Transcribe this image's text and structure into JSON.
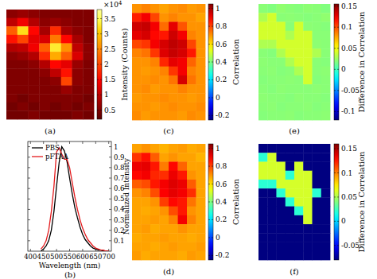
{
  "chart_data": [
    {
      "type": "heatmap",
      "panel_label": "(a)",
      "color": "hot",
      "cells": [
        [
          0.6,
          0.7,
          0.6,
          0.5,
          0.5,
          0.5,
          0.5,
          0.5
        ],
        [
          1.0,
          1.4,
          0.9,
          0.6,
          0.7,
          0.6,
          0.5,
          0.5
        ],
        [
          2.2,
          3.2,
          1.5,
          0.8,
          1.8,
          0.8,
          0.6,
          0.5
        ],
        [
          1.6,
          2.0,
          1.3,
          1.2,
          2.4,
          1.5,
          0.8,
          0.5
        ],
        [
          0.9,
          1.0,
          1.4,
          2.2,
          3.3,
          2.6,
          1.0,
          0.6
        ],
        [
          0.6,
          0.7,
          0.9,
          1.8,
          2.8,
          2.2,
          1.2,
          0.6
        ],
        [
          0.5,
          0.5,
          0.6,
          0.9,
          1.5,
          1.3,
          0.7,
          0.5
        ],
        [
          0.5,
          0.5,
          0.5,
          0.6,
          1.0,
          1.6,
          0.6,
          0.5
        ],
        [
          0.5,
          0.5,
          0.5,
          0.5,
          0.6,
          2.0,
          0.6,
          0.5
        ],
        [
          0.5,
          0.5,
          0.5,
          0.5,
          0.5,
          0.7,
          0.5,
          0.5
        ],
        [
          0.5,
          0.4,
          0.5,
          0.5,
          0.5,
          0.5,
          0.5,
          0.4
        ],
        [
          0.4,
          0.5,
          0.4,
          0.5,
          0.4,
          0.5,
          0.4,
          0.5
        ],
        [
          0.4,
          0.4,
          0.5,
          0.4,
          0.4,
          0.4,
          0.5,
          0.4
        ]
      ],
      "colorbar": {
        "range": [
          0.2,
          3.8
        ],
        "ticks": [
          0.5,
          1,
          1.5,
          2,
          2.5,
          3,
          3.5
        ],
        "label": "Intensity (Counts)",
        "multiplier": "×10",
        "exponent": "4"
      }
    },
    {
      "type": "line",
      "panel_label": "(b)",
      "x": [
        440,
        450,
        460,
        470,
        480,
        490,
        500,
        510,
        520,
        530,
        540,
        550,
        560,
        570,
        580,
        590,
        600,
        610,
        620,
        630,
        640,
        650,
        660,
        670,
        680,
        690,
        700
      ],
      "series": [
        {
          "name": "PBS",
          "color": "#000000",
          "values": [
            0,
            0.02,
            0.05,
            0.1,
            0.2,
            0.38,
            0.62,
            0.85,
            1.0,
            0.96,
            0.86,
            0.7,
            0.55,
            0.42,
            0.32,
            0.23,
            0.16,
            0.11,
            0.08,
            0.05,
            0.03,
            0.02,
            0.01,
            0.01,
            0,
            0,
            0
          ]
        },
        {
          "name": "pFTAA",
          "color": "#e41a1c",
          "values": [
            0.02,
            0.05,
            0.1,
            0.2,
            0.38,
            0.62,
            0.95,
            0.99,
            0.93,
            0.88,
            0.88,
            0.8,
            0.66,
            0.52,
            0.4,
            0.3,
            0.22,
            0.16,
            0.11,
            0.08,
            0.05,
            0.03,
            0.02,
            0.01,
            0.01,
            0,
            0
          ]
        }
      ],
      "xlim": [
        390,
        710
      ],
      "ylim": [
        0,
        1.05
      ],
      "xticks": [
        400,
        450,
        500,
        550,
        600,
        650,
        700
      ],
      "yticks": [
        0.1,
        0.2,
        0.3,
        0.4,
        0.5,
        0.6,
        0.7,
        0.8,
        0.9,
        1
      ],
      "xlabel": "Wavelength (nm)",
      "ylabel": "Normalized Intensity",
      "legend": "upper left"
    },
    {
      "type": "heatmap",
      "panel_label": "(c)",
      "color": "jet",
      "cells": [
        [
          0.7,
          0.72,
          0.7,
          0.68,
          0.7,
          0.71,
          0.69,
          0.7
        ],
        [
          0.85,
          0.9,
          0.8,
          0.7,
          0.72,
          0.7,
          0.7,
          0.68
        ],
        [
          0.95,
          0.96,
          0.9,
          0.75,
          0.92,
          0.78,
          0.7,
          0.7
        ],
        [
          0.92,
          0.94,
          0.88,
          0.86,
          0.95,
          0.9,
          0.72,
          0.7
        ],
        [
          0.8,
          0.82,
          0.9,
          0.94,
          0.97,
          0.95,
          0.8,
          0.7
        ],
        [
          0.72,
          0.74,
          0.82,
          0.93,
          0.96,
          0.94,
          0.86,
          0.7
        ],
        [
          0.7,
          0.7,
          0.72,
          0.84,
          0.92,
          0.9,
          0.76,
          0.7
        ],
        [
          0.7,
          0.69,
          0.7,
          0.72,
          0.82,
          0.9,
          0.72,
          0.7
        ],
        [
          0.7,
          0.7,
          0.71,
          0.7,
          0.74,
          0.94,
          0.74,
          0.7
        ],
        [
          0.7,
          0.71,
          0.69,
          0.7,
          0.7,
          0.72,
          0.7,
          0.7
        ],
        [
          0.69,
          0.7,
          0.7,
          0.71,
          0.7,
          0.7,
          0.69,
          0.7
        ],
        [
          0.7,
          0.7,
          0.69,
          0.7,
          0.71,
          0.7,
          0.7,
          0.71
        ],
        [
          0.71,
          0.69,
          0.7,
          0.7,
          0.7,
          0.69,
          0.71,
          0.7
        ]
      ],
      "colorbar": {
        "range": [
          -0.25,
          1.05
        ],
        "ticks": [
          -0.2,
          0,
          0.2,
          0.4,
          0.6,
          0.8,
          1
        ],
        "label": "Correlation"
      }
    },
    {
      "type": "heatmap",
      "panel_label": "(d)",
      "color": "jet",
      "cells": [
        [
          0.68,
          0.7,
          0.68,
          0.66,
          0.68,
          0.69,
          0.67,
          0.68
        ],
        [
          0.82,
          0.87,
          0.77,
          0.68,
          0.7,
          0.68,
          0.68,
          0.66
        ],
        [
          0.91,
          0.92,
          0.86,
          0.73,
          0.88,
          0.76,
          0.68,
          0.68
        ],
        [
          0.88,
          0.9,
          0.84,
          0.83,
          0.91,
          0.86,
          0.7,
          0.68
        ],
        [
          0.77,
          0.79,
          0.86,
          0.9,
          0.93,
          0.91,
          0.77,
          0.68
        ],
        [
          0.7,
          0.72,
          0.79,
          0.89,
          0.92,
          0.9,
          0.83,
          0.68
        ],
        [
          0.68,
          0.68,
          0.7,
          0.81,
          0.88,
          0.86,
          0.74,
          0.68
        ],
        [
          0.68,
          0.67,
          0.68,
          0.7,
          0.79,
          0.86,
          0.7,
          0.68
        ],
        [
          0.68,
          0.68,
          0.69,
          0.68,
          0.72,
          0.9,
          0.72,
          0.68
        ],
        [
          0.68,
          0.69,
          0.67,
          0.68,
          0.68,
          0.7,
          0.68,
          0.68
        ],
        [
          0.67,
          0.68,
          0.68,
          0.69,
          0.68,
          0.68,
          0.67,
          0.68
        ],
        [
          0.68,
          0.68,
          0.67,
          0.68,
          0.69,
          0.68,
          0.68,
          0.69
        ],
        [
          0.69,
          0.67,
          0.68,
          0.68,
          0.68,
          0.67,
          0.69,
          0.68
        ]
      ],
      "colorbar": {
        "range": [
          -0.25,
          1.05
        ],
        "ticks": [
          -0.2,
          0,
          0.2,
          0.4,
          0.6,
          0.8,
          1
        ],
        "label": "Correlation"
      }
    },
    {
      "type": "heatmap",
      "panel_label": "(e)",
      "color": "jet",
      "cells": [
        [
          0.02,
          0.018,
          0.022,
          0.02,
          0.019,
          0.021,
          0.02,
          0.018
        ],
        [
          0.03,
          0.04,
          0.02,
          0.021,
          0.02,
          0.019,
          0.02,
          0.022
        ],
        [
          0.04,
          0.04,
          0.04,
          0.02,
          0.04,
          0.021,
          0.02,
          0.019
        ],
        [
          0.04,
          0.04,
          0.04,
          0.03,
          0.04,
          0.04,
          0.02,
          0.02
        ],
        [
          0.03,
          0.03,
          0.04,
          0.04,
          0.04,
          0.04,
          0.021,
          0.02
        ],
        [
          0.02,
          0.019,
          0.03,
          0.04,
          0.04,
          0.04,
          0.03,
          0.02
        ],
        [
          0.021,
          0.02,
          0.02,
          0.03,
          0.04,
          0.04,
          0.02,
          0.019
        ],
        [
          0.02,
          0.021,
          0.019,
          0.02,
          0.03,
          0.04,
          0.02,
          0.021
        ],
        [
          0.019,
          0.02,
          0.02,
          0.021,
          0.02,
          0.04,
          0.019,
          0.02
        ],
        [
          0.02,
          0.019,
          0.021,
          0.02,
          0.02,
          0.02,
          0.021,
          0.02
        ],
        [
          0.021,
          0.02,
          0.02,
          0.019,
          0.021,
          0.02,
          0.02,
          0.019
        ],
        [
          0.02,
          0.021,
          0.019,
          0.02,
          0.02,
          0.021,
          0.019,
          0.02
        ],
        [
          0.019,
          0.02,
          0.02,
          0.021,
          0.019,
          0.02,
          0.02,
          0.021
        ]
      ],
      "colorbar": {
        "range": [
          -0.12,
          0.155
        ],
        "ticks": [
          -0.1,
          -0.05,
          0,
          0.05,
          0.1,
          0.15
        ],
        "label": "Difference in Correlation"
      }
    },
    {
      "type": "heatmap",
      "panel_label": "(f)",
      "color": "jet",
      "cells": [
        [
          -0.08,
          -0.08,
          -0.08,
          -0.08,
          -0.08,
          -0.08,
          -0.08,
          -0.08
        ],
        [
          0.02,
          0.06,
          -0.08,
          -0.08,
          -0.08,
          -0.08,
          -0.08,
          -0.08
        ],
        [
          0.06,
          0.06,
          0.06,
          -0.08,
          0.06,
          -0.08,
          -0.08,
          -0.08
        ],
        [
          0.06,
          0.06,
          0.06,
          0.02,
          0.06,
          0.06,
          -0.08,
          -0.08
        ],
        [
          0.02,
          0.02,
          0.06,
          0.06,
          0.06,
          0.06,
          -0.08,
          -0.08
        ],
        [
          -0.08,
          -0.08,
          0.02,
          0.06,
          0.06,
          0.06,
          0.02,
          -0.08
        ],
        [
          -0.08,
          -0.08,
          -0.08,
          0.02,
          0.06,
          0.06,
          -0.08,
          -0.08
        ],
        [
          -0.08,
          -0.08,
          -0.08,
          -0.08,
          0.02,
          0.06,
          -0.08,
          -0.08
        ],
        [
          -0.08,
          -0.08,
          -0.08,
          -0.08,
          -0.08,
          0.06,
          -0.08,
          -0.08
        ],
        [
          -0.08,
          -0.08,
          -0.08,
          -0.08,
          -0.08,
          -0.08,
          -0.08,
          -0.08
        ],
        [
          -0.08,
          -0.08,
          -0.08,
          -0.08,
          -0.08,
          -0.08,
          -0.08,
          -0.08
        ],
        [
          -0.08,
          -0.08,
          -0.08,
          -0.08,
          -0.08,
          -0.08,
          -0.08,
          -0.08
        ],
        [
          -0.08,
          -0.08,
          -0.08,
          -0.08,
          -0.08,
          -0.08,
          -0.08,
          -0.08
        ]
      ],
      "colorbar": {
        "range": [
          -0.08,
          0.16
        ],
        "ticks": [
          -0.05,
          0,
          0.05,
          0.1,
          0.15
        ],
        "label": "Difference in Correlation"
      }
    }
  ]
}
